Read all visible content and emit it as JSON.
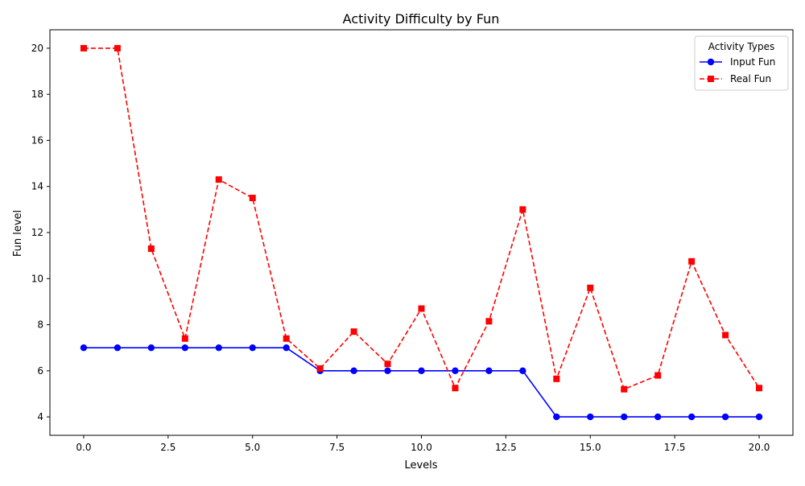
{
  "chart_data": {
    "type": "line",
    "title": "Activity Difficulty by Fun",
    "xlabel": "Levels",
    "ylabel": "Fun level",
    "xlim": [
      -1,
      21
    ],
    "ylim": [
      3.2,
      20.8
    ],
    "x_ticks": [
      0.0,
      2.5,
      5.0,
      7.5,
      10.0,
      12.5,
      15.0,
      17.5,
      20.0
    ],
    "x_tick_labels": [
      "0.0",
      "2.5",
      "5.0",
      "7.5",
      "10.0",
      "12.5",
      "15.0",
      "17.5",
      "20.0"
    ],
    "y_ticks": [
      4,
      6,
      8,
      10,
      12,
      14,
      16,
      18,
      20
    ],
    "y_tick_labels": [
      "4",
      "6",
      "8",
      "10",
      "12",
      "14",
      "16",
      "18",
      "20"
    ],
    "grid": false,
    "legend": {
      "title": "Activity Types",
      "placement": "top-right"
    },
    "x": [
      0,
      1,
      2,
      3,
      4,
      5,
      6,
      7,
      8,
      9,
      10,
      11,
      12,
      13,
      14,
      15,
      16,
      17,
      18,
      19,
      20
    ],
    "series": [
      {
        "name": "Input Fun",
        "color": "#0000ff",
        "line_style": "solid",
        "marker": "circle",
        "values": [
          7,
          7,
          7,
          7,
          7,
          7,
          7,
          6,
          6,
          6,
          6,
          6,
          6,
          6,
          4,
          4,
          4,
          4,
          4,
          4,
          4
        ]
      },
      {
        "name": "Real Fun",
        "color": "#ff0000",
        "line_style": "dashed",
        "marker": "square",
        "values": [
          20,
          20,
          11.3,
          7.4,
          14.3,
          13.5,
          7.4,
          6.1,
          7.7,
          6.3,
          8.7,
          5.25,
          8.15,
          13,
          5.65,
          9.6,
          5.2,
          5.8,
          10.75,
          7.55,
          5.25
        ]
      }
    ]
  }
}
